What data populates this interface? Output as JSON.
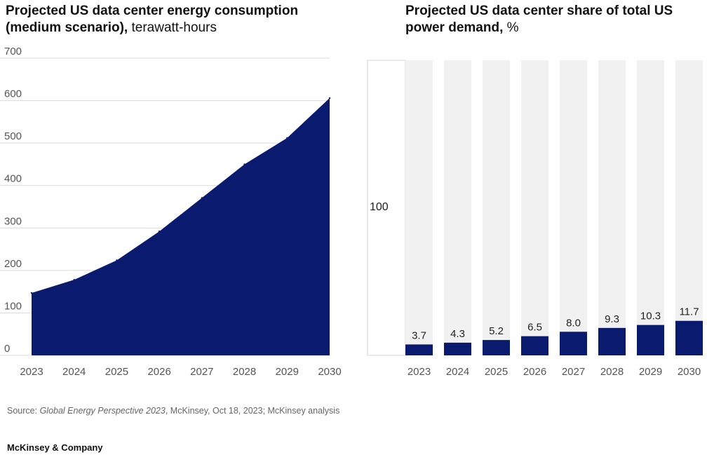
{
  "left_title": {
    "bold": "Projected US data center energy consumption (medium scenario),",
    "light": " terawatt-hours"
  },
  "right_title": {
    "bold": "Projected US data center share of total US power demand,",
    "light": " %"
  },
  "source": {
    "prefix": "Source: ",
    "italic": "Global Energy Perspective 2023",
    "suffix": ", McKinsey, Oct 18, 2023; McKinsey analysis"
  },
  "brand": "McKinsey & Company",
  "colors": {
    "navy": "#0a1a6e",
    "bar_background": "#f1f1f1",
    "grid": "#d9d9d9",
    "axis_text": "#555555"
  },
  "chart_data": [
    {
      "type": "area",
      "title": "Projected US data center energy consumption (medium scenario), terawatt-hours",
      "x": [
        "2023",
        "2024",
        "2025",
        "2026",
        "2027",
        "2028",
        "2029",
        "2030"
      ],
      "values": [
        147,
        178,
        224,
        292,
        371,
        450,
        512,
        606
      ],
      "ylim": [
        0,
        700
      ],
      "yticks": [
        0,
        100,
        200,
        300,
        400,
        500,
        600,
        700
      ],
      "grid": true,
      "legend": "none"
    },
    {
      "type": "bar",
      "title": "Projected US data center share of total US power demand, %",
      "categories": [
        "2023",
        "2024",
        "2025",
        "2026",
        "2027",
        "2028",
        "2029",
        "2030"
      ],
      "values": [
        3.7,
        4.3,
        5.2,
        6.5,
        8.0,
        9.3,
        10.3,
        11.7
      ],
      "value_labels": [
        "3.7",
        "4.3",
        "5.2",
        "6.5",
        "8.0",
        "9.3",
        "10.3",
        "11.7"
      ],
      "reference_total": 100,
      "reference_label": "100",
      "ylim": [
        0,
        100
      ],
      "grid": false,
      "legend": "none"
    }
  ]
}
